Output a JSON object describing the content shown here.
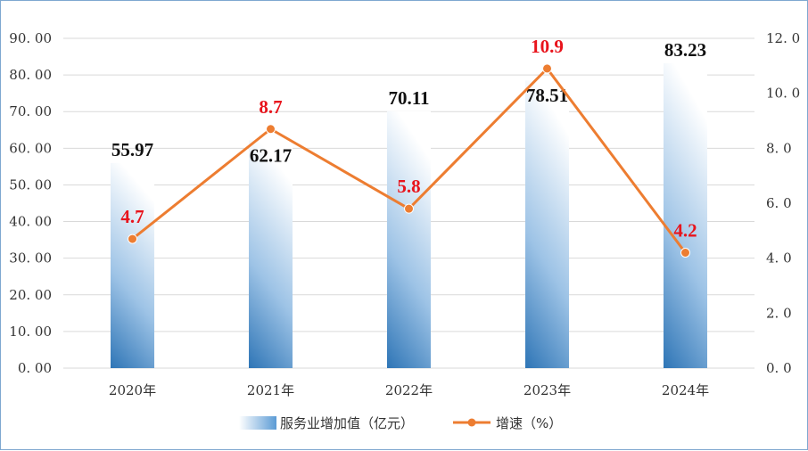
{
  "chart_data": {
    "type": "bar+line",
    "categories": [
      "2020年",
      "2021年",
      "2022年",
      "2023年",
      "2024年"
    ],
    "series": [
      {
        "name": "服务业增加值（亿元）",
        "type": "bar",
        "axis": "left",
        "values": [
          55.97,
          62.17,
          70.11,
          78.51,
          83.23
        ],
        "labels": [
          "55.97",
          "62.17",
          "70.11",
          "78.51",
          "83.23"
        ]
      },
      {
        "name": "增速（%）",
        "type": "line",
        "axis": "right",
        "values": [
          4.7,
          8.7,
          5.8,
          10.9,
          4.2
        ],
        "labels": [
          "4.7",
          "8.7",
          "5.8",
          "10.9",
          "4.2"
        ]
      }
    ],
    "left_axis": {
      "range": [
        0,
        90
      ],
      "ticks": [
        0,
        10,
        20,
        30,
        40,
        50,
        60,
        70,
        80,
        90
      ],
      "tick_labels": [
        "0. 00",
        "10. 00",
        "20. 00",
        "30. 00",
        "40. 00",
        "50. 00",
        "60. 00",
        "70. 00",
        "80. 00",
        "90. 00"
      ]
    },
    "right_axis": {
      "range": [
        0,
        12
      ],
      "ticks": [
        0,
        2,
        4,
        6,
        8,
        10,
        12
      ],
      "tick_labels": [
        "0. 0",
        "2. 0",
        "4. 0",
        "6. 0",
        "8. 0",
        "10. 0",
        "12. 0"
      ]
    },
    "grid": true,
    "legend_position": "bottom",
    "colors": {
      "bar_top": "#ffffff",
      "bar_bottom": "#2e75b6",
      "line": "#ed7d31",
      "line_label": "#e8141c",
      "bar_label": "#111111",
      "grid": "#d9d9d9"
    }
  }
}
